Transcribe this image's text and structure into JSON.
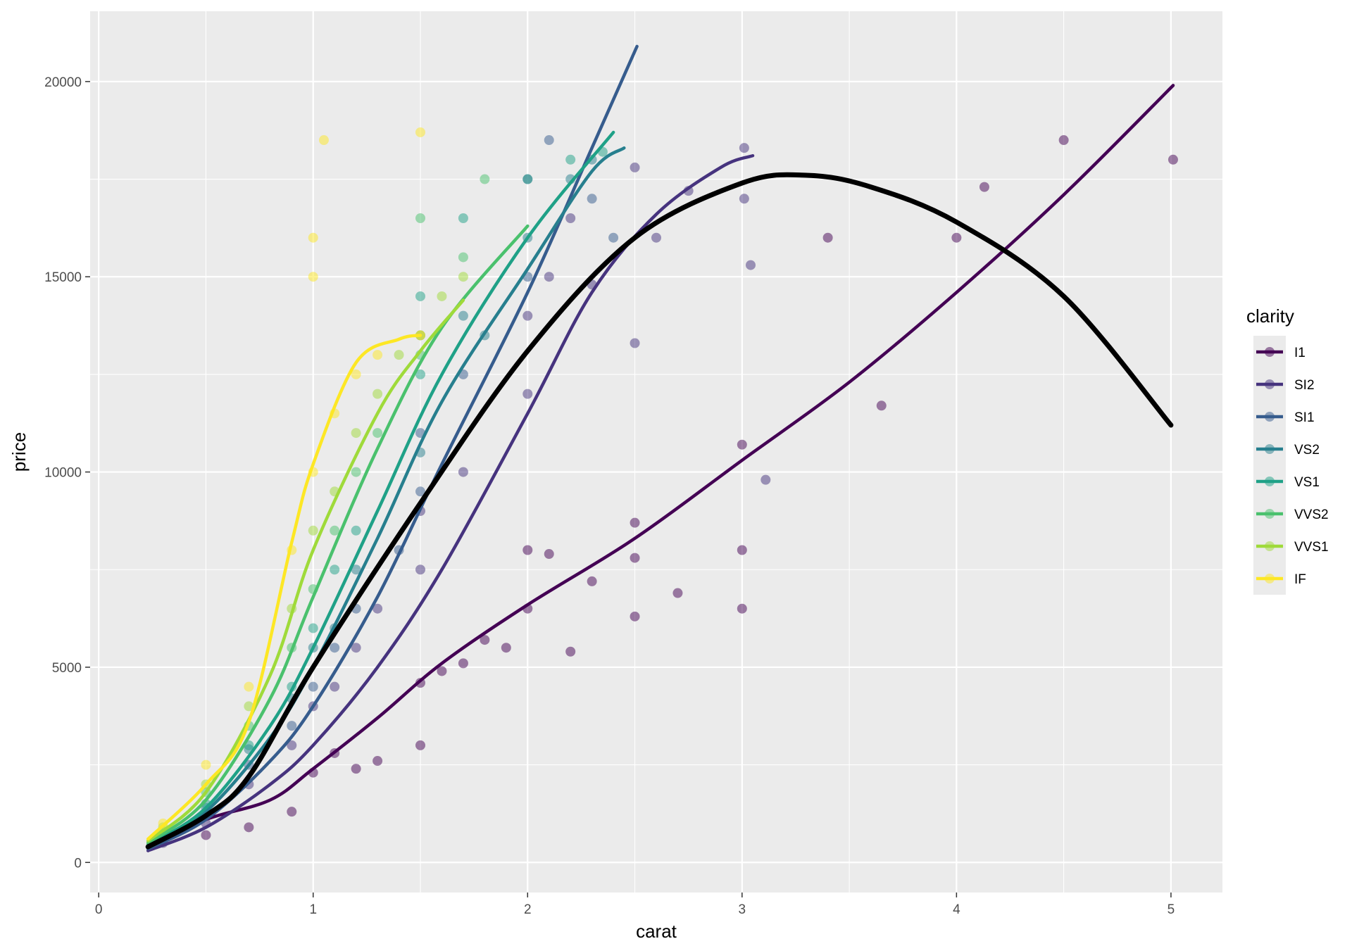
{
  "chart_data": {
    "type": "scatter",
    "title": "",
    "xlabel": "carat",
    "ylabel": "price",
    "xlim": [
      -0.04,
      5.24
    ],
    "ylim": [
      -770,
      21800
    ],
    "x_ticks": [
      0,
      1,
      2,
      3,
      4,
      5
    ],
    "y_ticks": [
      0,
      5000,
      10000,
      15000,
      20000
    ],
    "x_tick_labels": [
      "0",
      "1",
      "2",
      "3",
      "4",
      "5"
    ],
    "y_tick_labels": [
      "0",
      "5000",
      "10000",
      "15000",
      "20000"
    ],
    "grid": true,
    "legend_position": "right",
    "legend_title": "clarity",
    "point_alpha": 0.5,
    "series": [
      {
        "name": "I1",
        "color": "#440154",
        "points": [
          [
            0.5,
            700
          ],
          [
            0.7,
            900
          ],
          [
            0.9,
            1300
          ],
          [
            1.0,
            2300
          ],
          [
            1.1,
            2800
          ],
          [
            1.2,
            2400
          ],
          [
            1.3,
            2600
          ],
          [
            1.5,
            3000
          ],
          [
            1.5,
            4600
          ],
          [
            1.6,
            4900
          ],
          [
            1.7,
            5100
          ],
          [
            1.8,
            5700
          ],
          [
            1.9,
            5500
          ],
          [
            2.0,
            6500
          ],
          [
            2.0,
            8000
          ],
          [
            2.1,
            7900
          ],
          [
            2.2,
            5400
          ],
          [
            2.3,
            7200
          ],
          [
            2.5,
            6300
          ],
          [
            2.5,
            7800
          ],
          [
            2.5,
            8700
          ],
          [
            2.7,
            6900
          ],
          [
            3.0,
            6500
          ],
          [
            3.0,
            8000
          ],
          [
            3.0,
            10700
          ],
          [
            3.4,
            16000
          ],
          [
            3.65,
            11700
          ],
          [
            4.0,
            16000
          ],
          [
            4.13,
            17300
          ],
          [
            4.5,
            18500
          ],
          [
            5.01,
            18000
          ]
        ],
        "trend": [
          [
            0.23,
            400
          ],
          [
            0.5,
            1100
          ],
          [
            0.8,
            1600
          ],
          [
            1.0,
            2400
          ],
          [
            1.3,
            3700
          ],
          [
            1.6,
            5100
          ],
          [
            2.0,
            6600
          ],
          [
            2.5,
            8300
          ],
          [
            3.0,
            10300
          ],
          [
            3.5,
            12300
          ],
          [
            4.0,
            14600
          ],
          [
            4.5,
            17100
          ],
          [
            5.01,
            19900
          ]
        ]
      },
      {
        "name": "SI2",
        "color": "#46337E",
        "points": [
          [
            0.3,
            500
          ],
          [
            0.5,
            1000
          ],
          [
            0.7,
            2000
          ],
          [
            0.9,
            3000
          ],
          [
            1.0,
            4000
          ],
          [
            1.1,
            4500
          ],
          [
            1.2,
            5500
          ],
          [
            1.3,
            6500
          ],
          [
            1.5,
            7500
          ],
          [
            1.5,
            9000
          ],
          [
            1.7,
            10000
          ],
          [
            2.0,
            12000
          ],
          [
            2.0,
            14000
          ],
          [
            2.1,
            15000
          ],
          [
            2.2,
            16500
          ],
          [
            2.3,
            14800
          ],
          [
            2.5,
            13300
          ],
          [
            2.5,
            17800
          ],
          [
            2.6,
            16000
          ],
          [
            2.75,
            17200
          ],
          [
            3.01,
            18300
          ],
          [
            3.01,
            17000
          ],
          [
            3.04,
            15300
          ],
          [
            3.11,
            9800
          ]
        ],
        "trend": [
          [
            0.23,
            300
          ],
          [
            0.5,
            900
          ],
          [
            0.8,
            2000
          ],
          [
            1.0,
            3000
          ],
          [
            1.3,
            5000
          ],
          [
            1.6,
            7500
          ],
          [
            2.0,
            11500
          ],
          [
            2.3,
            14600
          ],
          [
            2.6,
            16600
          ],
          [
            2.9,
            17800
          ],
          [
            3.05,
            18100
          ]
        ]
      },
      {
        "name": "SI1",
        "color": "#365C8D",
        "points": [
          [
            0.3,
            600
          ],
          [
            0.5,
            1200
          ],
          [
            0.7,
            2500
          ],
          [
            0.9,
            3500
          ],
          [
            1.0,
            4500
          ],
          [
            1.1,
            5500
          ],
          [
            1.2,
            6500
          ],
          [
            1.4,
            8000
          ],
          [
            1.5,
            9500
          ],
          [
            1.5,
            11000
          ],
          [
            1.7,
            12500
          ],
          [
            2.0,
            15000
          ],
          [
            2.0,
            17500
          ],
          [
            2.1,
            18500
          ],
          [
            2.3,
            17000
          ],
          [
            2.4,
            16000
          ]
        ],
        "trend": [
          [
            0.23,
            350
          ],
          [
            0.5,
            1100
          ],
          [
            0.8,
            2600
          ],
          [
            1.0,
            4000
          ],
          [
            1.3,
            6800
          ],
          [
            1.6,
            10200
          ],
          [
            2.0,
            14600
          ],
          [
            2.3,
            18300
          ],
          [
            2.51,
            20900
          ]
        ]
      },
      {
        "name": "VS2",
        "color": "#277F8E",
        "points": [
          [
            0.3,
            700
          ],
          [
            0.5,
            1400
          ],
          [
            0.7,
            2900
          ],
          [
            0.9,
            4200
          ],
          [
            1.0,
            5500
          ],
          [
            1.1,
            6000
          ],
          [
            1.2,
            7500
          ],
          [
            1.5,
            10500
          ],
          [
            1.5,
            13500
          ],
          [
            1.7,
            14000
          ],
          [
            1.8,
            13500
          ],
          [
            2.0,
            16000
          ],
          [
            2.2,
            17500
          ],
          [
            2.3,
            18000
          ]
        ],
        "trend": [
          [
            0.23,
            400
          ],
          [
            0.5,
            1300
          ],
          [
            0.8,
            3200
          ],
          [
            1.0,
            5000
          ],
          [
            1.3,
            8300
          ],
          [
            1.6,
            11800
          ],
          [
            2.0,
            15200
          ],
          [
            2.3,
            17700
          ],
          [
            2.45,
            18300
          ]
        ]
      },
      {
        "name": "VS1",
        "color": "#1FA187",
        "points": [
          [
            0.3,
            700
          ],
          [
            0.5,
            1500
          ],
          [
            0.7,
            3000
          ],
          [
            0.9,
            4500
          ],
          [
            1.0,
            6000
          ],
          [
            1.1,
            7500
          ],
          [
            1.2,
            8500
          ],
          [
            1.5,
            12500
          ],
          [
            1.5,
            14500
          ],
          [
            1.7,
            16500
          ],
          [
            2.0,
            17500
          ],
          [
            2.2,
            18000
          ],
          [
            2.35,
            18200
          ]
        ],
        "trend": [
          [
            0.23,
            450
          ],
          [
            0.5,
            1400
          ],
          [
            0.8,
            3500
          ],
          [
            1.0,
            5500
          ],
          [
            1.3,
            9000
          ],
          [
            1.6,
            12500
          ],
          [
            2.0,
            16000
          ],
          [
            2.4,
            18700
          ]
        ]
      },
      {
        "name": "VVS2",
        "color": "#4AC16D",
        "points": [
          [
            0.3,
            800
          ],
          [
            0.5,
            1800
          ],
          [
            0.7,
            3500
          ],
          [
            0.9,
            5500
          ],
          [
            1.0,
            7000
          ],
          [
            1.1,
            8500
          ],
          [
            1.2,
            10000
          ],
          [
            1.3,
            11000
          ],
          [
            1.5,
            13000
          ],
          [
            1.5,
            16500
          ],
          [
            1.7,
            15500
          ],
          [
            1.8,
            17500
          ]
        ],
        "trend": [
          [
            0.23,
            500
          ],
          [
            0.5,
            1600
          ],
          [
            0.8,
            4200
          ],
          [
            1.0,
            6800
          ],
          [
            1.3,
            10600
          ],
          [
            1.6,
            13700
          ],
          [
            2.0,
            16300
          ]
        ]
      },
      {
        "name": "VVS1",
        "color": "#9FDA3A",
        "points": [
          [
            0.3,
            900
          ],
          [
            0.5,
            2000
          ],
          [
            0.7,
            4000
          ],
          [
            0.9,
            6500
          ],
          [
            1.0,
            8500
          ],
          [
            1.1,
            9500
          ],
          [
            1.2,
            11000
          ],
          [
            1.3,
            12000
          ],
          [
            1.4,
            13000
          ],
          [
            1.5,
            13500
          ],
          [
            1.6,
            14500
          ],
          [
            1.7,
            15000
          ]
        ],
        "trend": [
          [
            0.23,
            550
          ],
          [
            0.5,
            1800
          ],
          [
            0.8,
            4800
          ],
          [
            1.0,
            8000
          ],
          [
            1.3,
            11500
          ],
          [
            1.5,
            13100
          ],
          [
            1.7,
            14400
          ]
        ]
      },
      {
        "name": "IF",
        "color": "#FDE725",
        "points": [
          [
            0.3,
            1000
          ],
          [
            0.5,
            2500
          ],
          [
            0.7,
            4500
          ],
          [
            0.9,
            8000
          ],
          [
            1.0,
            10000
          ],
          [
            1.0,
            15000
          ],
          [
            1.0,
            16000
          ],
          [
            1.05,
            18500
          ],
          [
            1.1,
            11500
          ],
          [
            1.2,
            12500
          ],
          [
            1.3,
            13000
          ],
          [
            1.5,
            13500
          ],
          [
            1.5,
            18700
          ]
        ],
        "trend": [
          [
            0.23,
            600
          ],
          [
            0.5,
            2000
          ],
          [
            0.7,
            3600
          ],
          [
            0.9,
            8200
          ],
          [
            1.0,
            10200
          ],
          [
            1.2,
            12800
          ],
          [
            1.4,
            13400
          ],
          [
            1.5,
            13500
          ]
        ]
      }
    ],
    "overall_trend": {
      "color": "#000000",
      "points": [
        [
          0.23,
          400
        ],
        [
          0.5,
          1200
        ],
        [
          0.7,
          2200
        ],
        [
          1.0,
          5000
        ],
        [
          1.5,
          9200
        ],
        [
          2.0,
          13100
        ],
        [
          2.5,
          16000
        ],
        [
          3.0,
          17400
        ],
        [
          3.3,
          17600
        ],
        [
          3.6,
          17300
        ],
        [
          4.0,
          16400
        ],
        [
          4.5,
          14500
        ],
        [
          5.0,
          11200
        ]
      ]
    }
  }
}
